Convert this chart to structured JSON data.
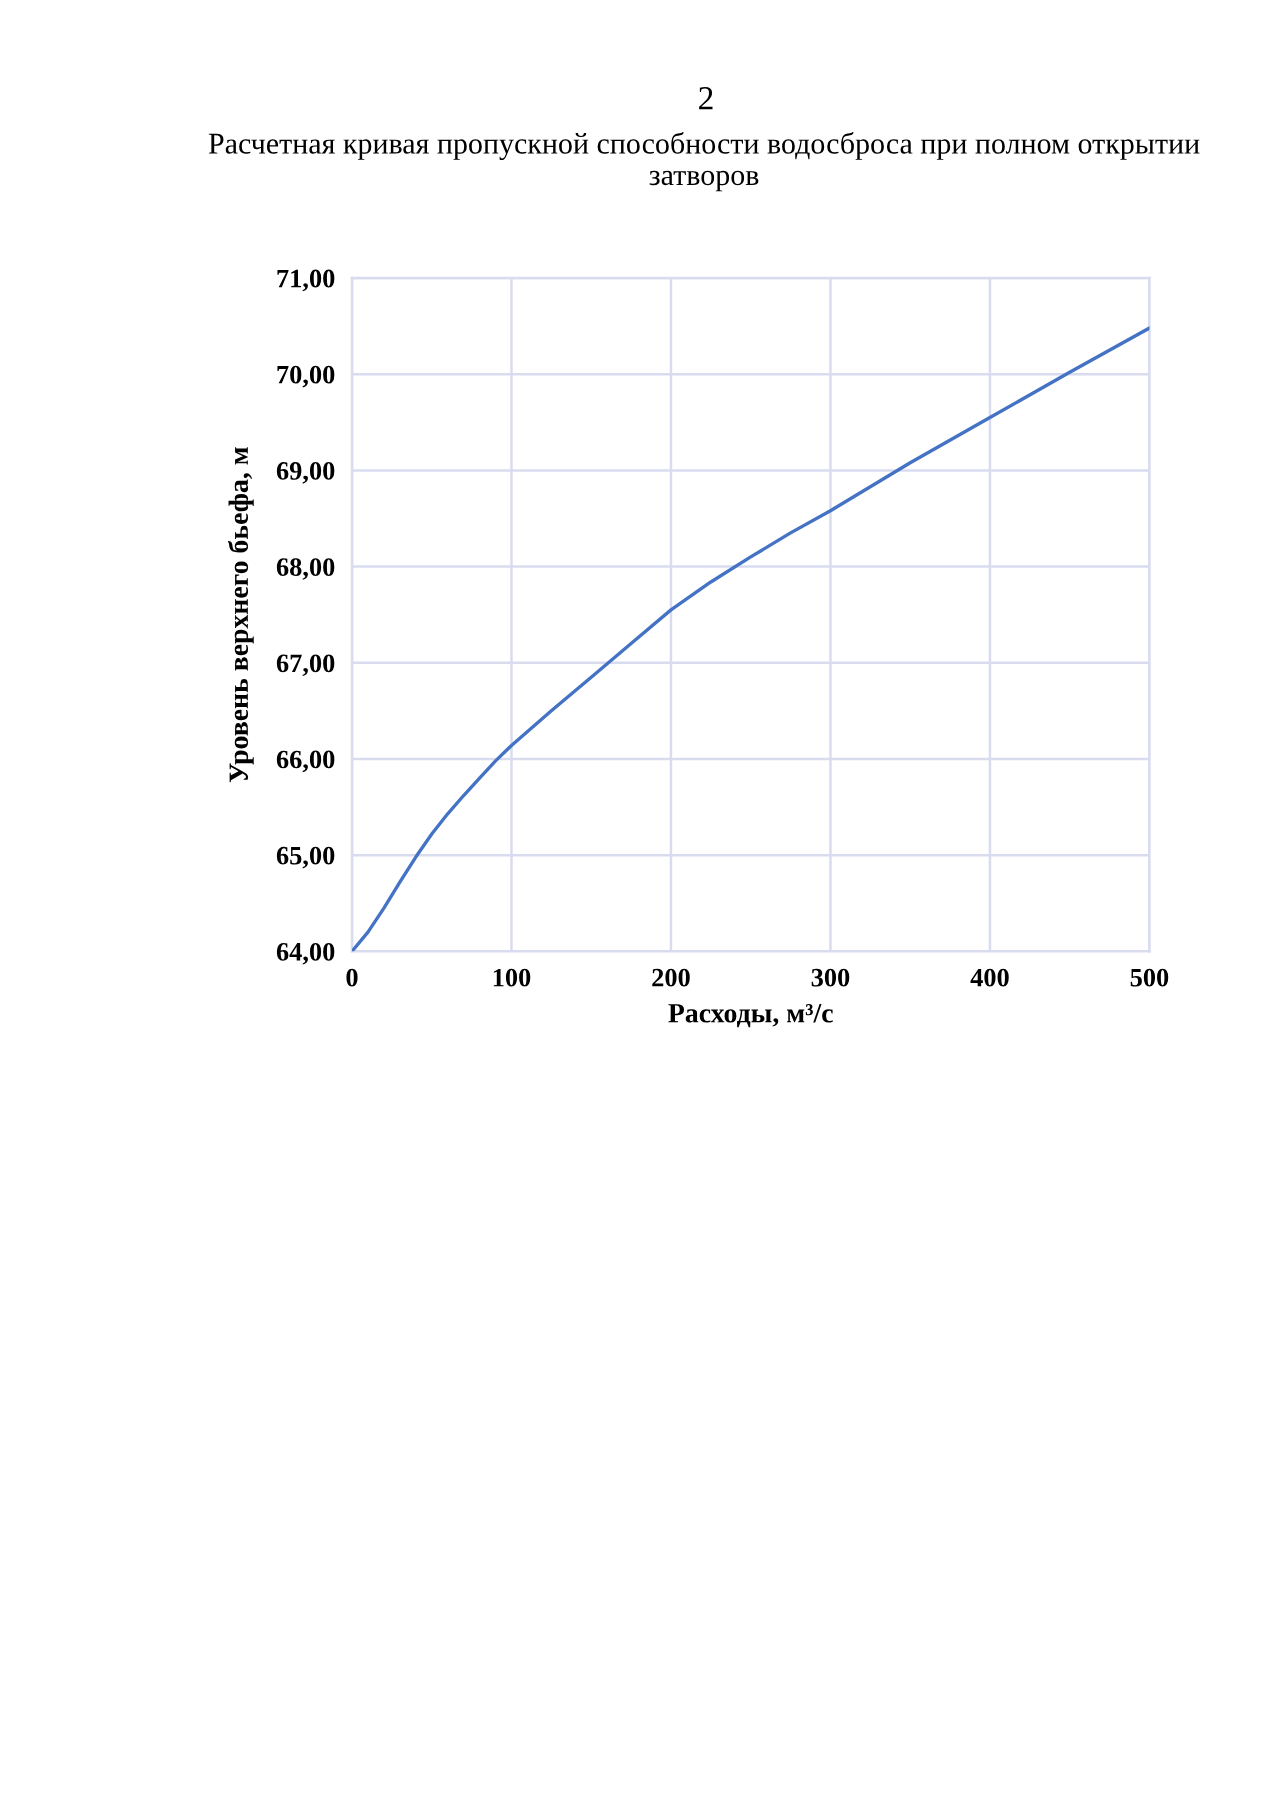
{
  "chart_data": {
    "type": "line",
    "title": "Расчетная кривая пропускной способности водосброса при полном открытии затворов",
    "annotations": [
      "2"
    ],
    "xlabel": "Расходы, м³/с",
    "ylabel": "Уровень верхнего бьефа, м",
    "x": [
      0,
      10,
      20,
      30,
      40,
      50,
      60,
      70,
      80,
      90,
      100,
      125,
      150,
      175,
      200,
      225,
      250,
      275,
      300,
      350,
      400,
      450,
      500
    ],
    "series": [
      {
        "color": "#4472c4",
        "values": [
          64.0,
          64.2,
          64.45,
          64.72,
          64.98,
          65.22,
          65.43,
          65.62,
          65.8,
          65.98,
          66.14,
          66.5,
          66.85,
          67.2,
          67.55,
          67.84,
          68.1,
          68.35,
          68.58,
          69.08,
          69.55,
          70.02,
          70.48
        ]
      }
    ],
    "xlim": [
      0,
      500
    ],
    "ylim": [
      64,
      71
    ],
    "xticks": [
      0,
      100,
      200,
      300,
      400,
      500
    ],
    "yticks": [
      {
        "value": 64,
        "label": "64,00"
      },
      {
        "value": 65,
        "label": "65,00"
      },
      {
        "value": 66,
        "label": "66,00"
      },
      {
        "value": 67,
        "label": "67,00"
      },
      {
        "value": 68,
        "label": "68,00"
      },
      {
        "value": 69,
        "label": "69,00"
      },
      {
        "value": 70,
        "label": "70,00"
      },
      {
        "value": 71,
        "label": "71,00"
      }
    ],
    "grid": true,
    "line_style": "solid"
  }
}
